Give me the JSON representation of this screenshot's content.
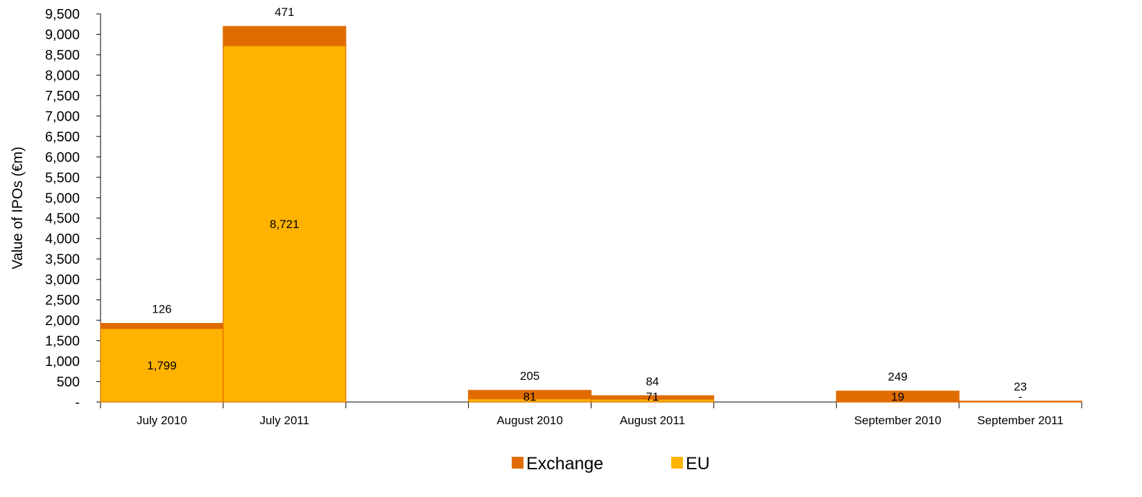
{
  "chart_data": {
    "type": "bar",
    "stacked": true,
    "ylabel": "Value of IPOs (€m)",
    "xlabel": "",
    "ylim": [
      0,
      9500
    ],
    "yticks": [
      0,
      500,
      1000,
      1500,
      2000,
      2500,
      3000,
      3500,
      4000,
      4500,
      5000,
      5500,
      6000,
      6500,
      7000,
      7500,
      8000,
      8500,
      9000,
      9500
    ],
    "ytick_labels": [
      "-",
      "500",
      "1,000",
      "1,500",
      "2,000",
      "2,500",
      "3,000",
      "3,500",
      "4,000",
      "4,500",
      "5,000",
      "5,500",
      "6,000",
      "6,500",
      "7,000",
      "7,500",
      "8,000",
      "8,500",
      "9,000",
      "9,500"
    ],
    "grid": false,
    "legend_position": "bottom",
    "categories": [
      "July 2010",
      "July 2011",
      "",
      "August 2010",
      "August 2011",
      "",
      "September 2010",
      "September 2011"
    ],
    "series": [
      {
        "name": "EU",
        "color": "#FFB300",
        "values": [
          1799,
          8721,
          null,
          81,
          71,
          null,
          19,
          0
        ],
        "labels": [
          "1,799",
          "8,721",
          "",
          "81",
          "71",
          "",
          "19",
          "-"
        ]
      },
      {
        "name": "Exchange",
        "color": "#E06C00",
        "values": [
          126,
          471,
          null,
          205,
          84,
          null,
          249,
          23
        ],
        "labels": [
          "126",
          "471",
          "",
          "205",
          "84",
          "",
          "249",
          "23"
        ]
      }
    ],
    "legend": [
      "Exchange",
      "EU"
    ]
  }
}
